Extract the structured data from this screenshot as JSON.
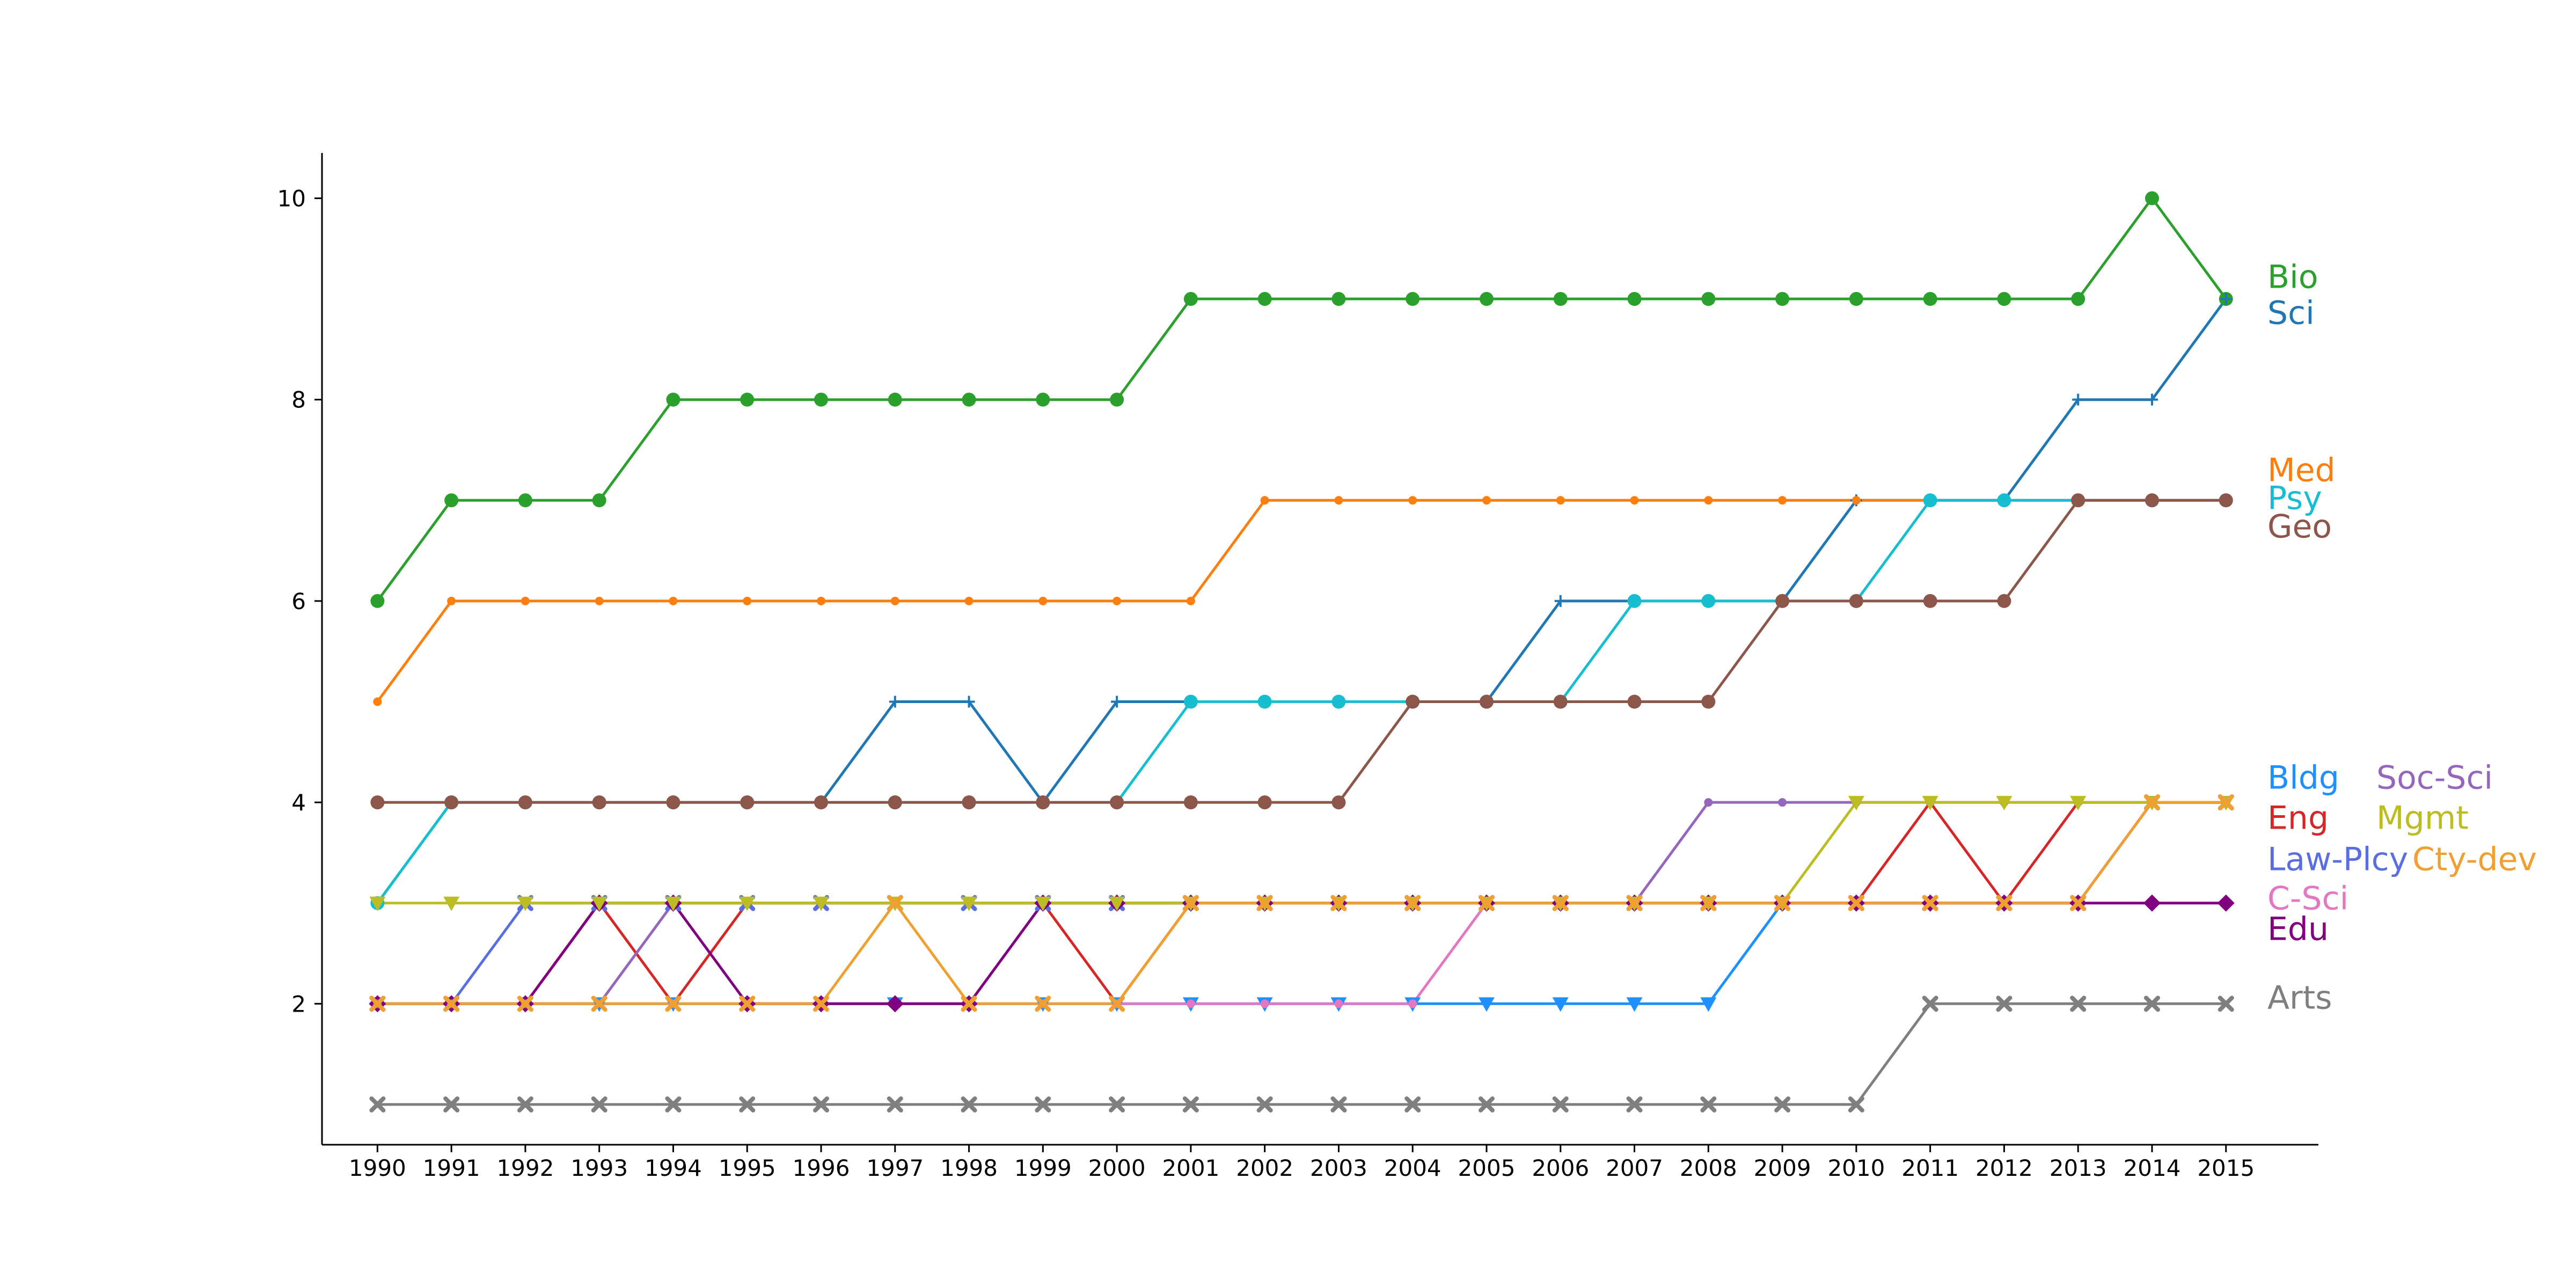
{
  "chart_data": {
    "type": "line",
    "title": "",
    "xlabel": "",
    "ylabel": "",
    "grid": false,
    "legend": "direct labels at right end of lines",
    "x": [
      1990,
      1991,
      1992,
      1993,
      1994,
      1995,
      1996,
      1997,
      1998,
      1999,
      2000,
      2001,
      2002,
      2003,
      2004,
      2005,
      2006,
      2007,
      2008,
      2009,
      2010,
      2011,
      2012,
      2013,
      2014,
      2015
    ],
    "xlim": [
      1989.25,
      2016.25
    ],
    "ylim": [
      0.6,
      10.45
    ],
    "yticks": [
      2,
      4,
      6,
      8,
      10
    ],
    "series": [
      {
        "name": "Bio",
        "color": "#2ca02c",
        "marker": "circle",
        "values": [
          6,
          7,
          7,
          7,
          8,
          8,
          8,
          8,
          8,
          8,
          8,
          9,
          9,
          9,
          9,
          9,
          9,
          9,
          9,
          9,
          9,
          9,
          9,
          9,
          10,
          9
        ]
      },
      {
        "name": "Sci",
        "color": "#1f77b4",
        "marker": "plus",
        "values": [
          3,
          4,
          4,
          4,
          4,
          4,
          4,
          5,
          5,
          4,
          5,
          5,
          5,
          5,
          5,
          5,
          6,
          6,
          6,
          6,
          7,
          7,
          7,
          8,
          8,
          9
        ]
      },
      {
        "name": "Med",
        "color": "#ff7f0e",
        "marker": "point",
        "values": [
          5,
          6,
          6,
          6,
          6,
          6,
          6,
          6,
          6,
          6,
          6,
          6,
          7,
          7,
          7,
          7,
          7,
          7,
          7,
          7,
          7,
          7,
          7,
          7,
          7,
          7
        ]
      },
      {
        "name": "Psy",
        "color": "#17becf",
        "marker": "circle",
        "values": [
          3,
          4,
          4,
          4,
          4,
          4,
          4,
          4,
          4,
          4,
          4,
          5,
          5,
          5,
          5,
          5,
          5,
          6,
          6,
          6,
          6,
          7,
          7,
          7,
          7,
          7
        ]
      },
      {
        "name": "Geo",
        "color": "#8c564b",
        "marker": "circle",
        "values": [
          4,
          4,
          4,
          4,
          4,
          4,
          4,
          4,
          4,
          4,
          4,
          4,
          4,
          4,
          5,
          5,
          5,
          5,
          5,
          6,
          6,
          6,
          6,
          7,
          7,
          7
        ]
      },
      {
        "name": "Bldg",
        "color": "#1e90ff",
        "marker": "triangle-down",
        "values": [
          2,
          2,
          2,
          2,
          2,
          2,
          2,
          2,
          2,
          2,
          2,
          2,
          2,
          2,
          2,
          2,
          2,
          2,
          2,
          3,
          3,
          3,
          3,
          3,
          4,
          4
        ]
      },
      {
        "name": "Eng",
        "color": "#d62728",
        "marker": "point",
        "values": [
          2,
          2,
          2,
          3,
          2,
          3,
          3,
          3,
          3,
          3,
          2,
          3,
          3,
          3,
          3,
          3,
          3,
          3,
          3,
          3,
          3,
          4,
          3,
          4,
          4,
          4
        ]
      },
      {
        "name": "Law-Plcy",
        "color": "#5b6ee1",
        "marker": "x",
        "values": [
          2,
          2,
          3,
          3,
          3,
          3,
          3,
          3,
          3,
          3,
          3,
          3,
          3,
          3,
          3,
          3,
          3,
          3,
          3,
          3,
          3,
          3,
          3,
          3,
          4,
          4
        ]
      },
      {
        "name": "C-Sci",
        "color": "#e377c2",
        "marker": "point",
        "values": [
          2,
          2,
          2,
          2,
          2,
          2,
          2,
          2,
          2,
          2,
          2,
          2,
          2,
          2,
          2,
          3,
          3,
          3,
          3,
          3,
          3,
          3,
          3,
          3,
          4,
          4
        ]
      },
      {
        "name": "Edu",
        "color": "#800080",
        "marker": "diamond",
        "values": [
          2,
          2,
          2,
          3,
          3,
          2,
          2,
          2,
          2,
          3,
          3,
          3,
          3,
          3,
          3,
          3,
          3,
          3,
          3,
          3,
          3,
          3,
          3,
          3,
          3,
          3
        ]
      },
      {
        "name": "Soc-Sci",
        "color": "#9467bd",
        "marker": "point",
        "values": [
          2,
          2,
          2,
          2,
          3,
          3,
          3,
          3,
          3,
          3,
          3,
          3,
          3,
          3,
          3,
          3,
          3,
          3,
          4,
          4,
          4,
          4,
          4,
          4,
          4,
          4
        ]
      },
      {
        "name": "Mgmt",
        "color": "#bcbd22",
        "marker": "triangle-down",
        "values": [
          3,
          3,
          3,
          3,
          3,
          3,
          3,
          3,
          3,
          3,
          3,
          3,
          3,
          3,
          3,
          3,
          3,
          3,
          3,
          3,
          4,
          4,
          4,
          4,
          4,
          4
        ]
      },
      {
        "name": "Cty-dev",
        "color": "#f0a030",
        "marker": "x",
        "values": [
          2,
          2,
          2,
          2,
          2,
          2,
          2,
          3,
          2,
          2,
          2,
          3,
          3,
          3,
          3,
          3,
          3,
          3,
          3,
          3,
          3,
          3,
          3,
          3,
          4,
          4
        ]
      },
      {
        "name": "Arts",
        "color": "#7f7f7f",
        "marker": "x",
        "values": [
          1,
          1,
          1,
          1,
          1,
          1,
          1,
          1,
          1,
          1,
          1,
          1,
          1,
          1,
          1,
          1,
          1,
          1,
          1,
          1,
          1,
          2,
          2,
          2,
          2,
          2
        ]
      }
    ]
  }
}
